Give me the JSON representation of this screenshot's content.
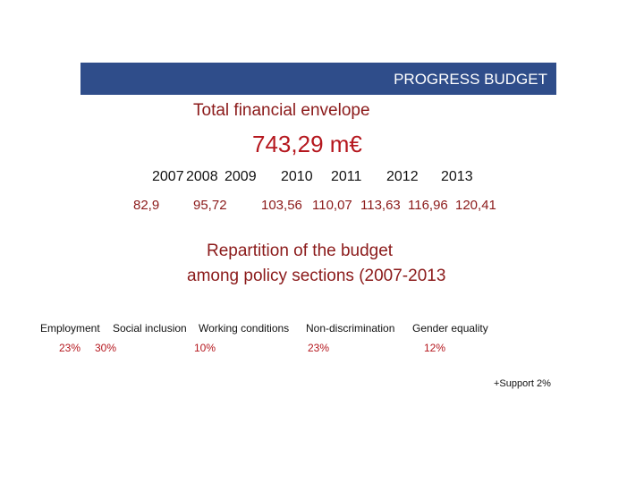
{
  "header": {
    "title": "PROGRESS BUDGET"
  },
  "envelope": {
    "label": "Total financial envelope",
    "total": "743,29 m€"
  },
  "budget": {
    "years": [
      "2007",
      "2008",
      "2009",
      "2010",
      "2011",
      "2012",
      "2013"
    ],
    "values": [
      "82,9",
      "95,72",
      "103,56",
      "110,07",
      "113,63",
      "116,96",
      "120,41"
    ]
  },
  "repartition": {
    "title_line1": "Repartition of the budget",
    "title_line2": "among policy sections (2007-2013",
    "sections": [
      {
        "name": "Employment",
        "share": "23%"
      },
      {
        "name": "Social inclusion",
        "share": "30%"
      },
      {
        "name": "Working conditions",
        "share": "10%"
      },
      {
        "name": "Non-discrimination",
        "share": "23%"
      },
      {
        "name": "Gender equality",
        "share": "12%"
      }
    ],
    "support": "+Support 2%"
  }
}
